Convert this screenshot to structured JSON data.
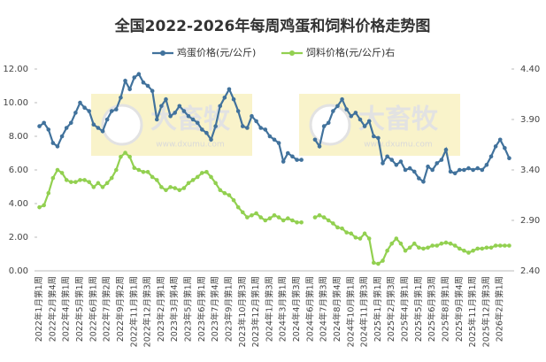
{
  "chart_data": {
    "type": "line",
    "title": "全国2022-2026年每周鸡蛋和饲料价格走势图",
    "watermark": {
      "brand": "大畜牧",
      "url": "www.dxumu.com"
    },
    "categories": [
      "2022年1月第1周",
      null,
      null,
      "2022年2月第4周",
      null,
      null,
      "2022年4月第1周",
      null,
      null,
      "2022年5月第1周",
      null,
      null,
      "2022年6月第1周",
      null,
      null,
      "2022年7月第2周",
      null,
      null,
      "2022年9月第2周",
      null,
      null,
      "2022年11月第1周",
      null,
      null,
      "2022年12月第3周",
      null,
      null,
      "2023年2月第1周",
      null,
      null,
      "2023年3月第4周",
      null,
      null,
      "2023年5月第1周",
      null,
      null,
      "2023年6月第1周",
      null,
      null,
      "2023年7月第4周",
      null,
      null,
      "2023年9月第1周",
      null,
      null,
      "2023年10月第3周",
      null,
      null,
      "2023年12月第1周",
      null,
      null,
      "2024年1月第3周",
      null,
      null,
      "2024年3月第1周",
      null,
      null,
      "2024年4月第3周",
      null,
      null,
      "2024年6月第1周",
      null,
      null,
      "2024年7月第3周",
      null,
      null,
      "2024年8月第4周",
      null,
      null,
      "2024年10月第1周",
      null,
      null,
      "2024年11月第3周",
      null,
      null,
      "2025年1月第1周",
      null,
      null,
      "2025年2月第3周",
      null,
      null,
      "2025年4月第1周",
      null,
      null,
      "2025年5月第1周",
      null,
      null,
      "2025年6月第3周",
      null,
      null,
      "2025年8月第1周",
      null,
      null,
      "2025年9月第4周",
      null,
      null,
      "2025年11月第1周",
      null,
      null,
      "2025年12月第3周",
      null,
      null,
      "2026年2月第1周",
      null,
      null
    ],
    "series": [
      {
        "name": "鸡蛋价格(元/公斤)",
        "color": "#41729c",
        "values": [
          8.6,
          8.8,
          8.4,
          7.6,
          7.4,
          8.0,
          8.5,
          8.8,
          9.4,
          10.0,
          9.7,
          9.5,
          8.7,
          8.5,
          8.3,
          9.0,
          9.5,
          9.6,
          10.3,
          11.3,
          10.8,
          11.5,
          11.7,
          11.2,
          11.0,
          10.7,
          9.0,
          9.8,
          10.2,
          9.2,
          9.4,
          9.8,
          9.5,
          9.2,
          9.0,
          8.8,
          8.4,
          8.2,
          7.8,
          8.6,
          9.8,
          10.3,
          10.8,
          10.2,
          9.5,
          8.6,
          8.5,
          9.2,
          8.9,
          8.5,
          8.4,
          8.0,
          7.8,
          7.6,
          6.5,
          7.0,
          6.8,
          6.6,
          6.6,
          null,
          null,
          7.8,
          7.4,
          8.6,
          8.8,
          9.5,
          9.8,
          10.2,
          9.6,
          9.2,
          9.4,
          9.0,
          8.6,
          8.9,
          8.0,
          7.9,
          6.4,
          6.8,
          6.6,
          6.3,
          6.5,
          6.0,
          6.1,
          5.9,
          5.5,
          5.3,
          6.2,
          6.0,
          6.4,
          6.6,
          7.2,
          5.9,
          5.8,
          6.0,
          6.0,
          6.1,
          6.0,
          6.1,
          6.0,
          6.3,
          6.8,
          7.4,
          7.8,
          7.3,
          6.7
        ]
      },
      {
        "name": "饲料价格(元/公斤)右",
        "color": "#92d050",
        "axis": "y2",
        "values": [
          3.03,
          3.05,
          3.17,
          3.32,
          3.4,
          3.37,
          3.3,
          3.28,
          3.28,
          3.3,
          3.3,
          3.28,
          3.23,
          3.27,
          3.23,
          3.27,
          3.32,
          3.4,
          3.53,
          3.57,
          3.53,
          3.42,
          3.4,
          3.38,
          3.38,
          3.33,
          3.3,
          3.23,
          3.2,
          3.23,
          3.22,
          3.2,
          3.22,
          3.27,
          3.3,
          3.33,
          3.37,
          3.38,
          3.33,
          3.27,
          3.2,
          3.17,
          3.15,
          3.1,
          3.03,
          2.98,
          2.93,
          2.95,
          2.97,
          2.93,
          2.9,
          2.92,
          2.95,
          2.93,
          2.9,
          2.92,
          2.9,
          2.88,
          2.88,
          null,
          null,
          2.93,
          2.95,
          2.93,
          2.9,
          2.87,
          2.83,
          2.82,
          2.78,
          2.77,
          2.73,
          2.72,
          2.77,
          2.72,
          2.48,
          2.47,
          2.5,
          2.6,
          2.67,
          2.72,
          2.67,
          2.6,
          2.63,
          2.67,
          2.63,
          2.62,
          2.63,
          2.65,
          2.65,
          2.67,
          2.68,
          2.67,
          2.65,
          2.62,
          2.6,
          2.58,
          2.6,
          2.62,
          2.62,
          2.63,
          2.63,
          2.65,
          2.65,
          2.65,
          2.65
        ]
      }
    ],
    "ylim": [
      0,
      12
    ],
    "yticks": [
      {
        "value": 0,
        "label": "0.00"
      },
      {
        "value": 2,
        "label": "2.00"
      },
      {
        "value": 4,
        "label": "4.00"
      },
      {
        "value": 6,
        "label": "6.00"
      },
      {
        "value": 8,
        "label": "8.00"
      },
      {
        "value": 10,
        "label": "10.00"
      },
      {
        "value": 12,
        "label": "12.00"
      }
    ],
    "y2lim": [
      2.4,
      4.4
    ],
    "y2ticks": [
      {
        "value": 2.4,
        "label": "2.40"
      },
      {
        "value": 2.9,
        "label": "2.90"
      },
      {
        "value": 3.4,
        "label": "3.40"
      },
      {
        "value": 3.9,
        "label": "3.90"
      },
      {
        "value": 4.4,
        "label": "4.40"
      }
    ],
    "legend": "top"
  }
}
